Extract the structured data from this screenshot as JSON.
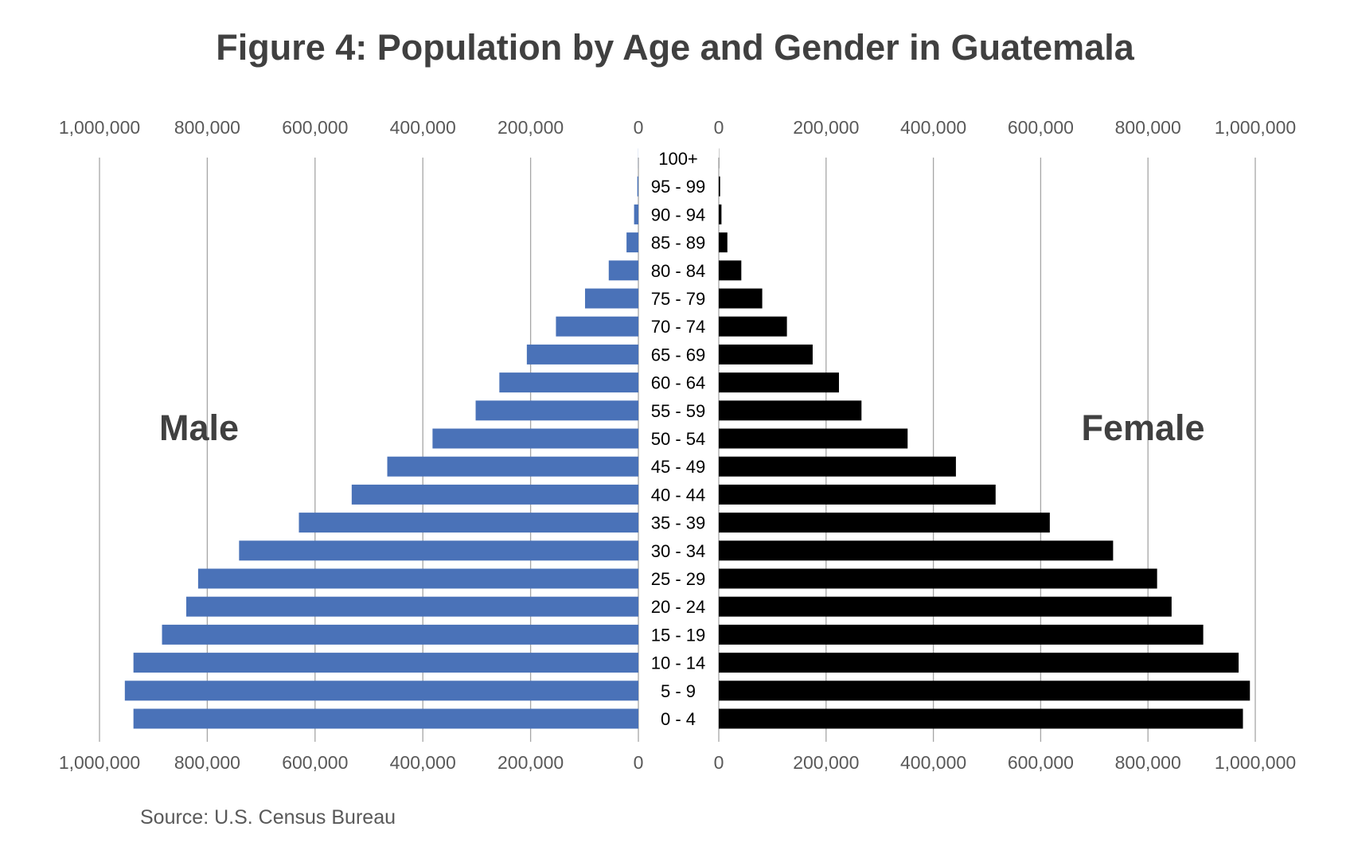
{
  "chart_data": {
    "type": "bar",
    "orientation": "horizontal",
    "title": "Figure 4: Population by Age and Gender in Guatemala",
    "source": "Source: U.S. Census Bureau",
    "categories": [
      "100+",
      "95 - 99",
      "90 - 94",
      "85 - 89",
      "80 - 84",
      "75 - 79",
      "70 - 74",
      "65 - 69",
      "60 - 64",
      "55 - 59",
      "50 - 54",
      "45 - 49",
      "40 - 44",
      "35 - 39",
      "30 - 34",
      "25 - 29",
      "20 - 24",
      "15 - 19",
      "10 - 14",
      "5 - 9",
      "0 - 4"
    ],
    "series": [
      {
        "name": "Male",
        "color": "#4a72b8",
        "values": [
          200,
          2000,
          8000,
          22000,
          55000,
          99000,
          153000,
          207000,
          258000,
          302000,
          382000,
          466000,
          532000,
          630000,
          741000,
          817000,
          839000,
          884000,
          937000,
          953000,
          937000
        ]
      },
      {
        "name": "Female",
        "color": "#000000",
        "values": [
          300,
          2500,
          5000,
          16000,
          42000,
          81000,
          127000,
          175000,
          224000,
          266000,
          352000,
          442000,
          516000,
          617000,
          735000,
          817000,
          844000,
          903000,
          969000,
          990000,
          977000
        ]
      }
    ],
    "xlim": [
      0,
      1000000
    ],
    "xticks": [
      "1,000,000",
      "800,000",
      "600,000",
      "400,000",
      "200,000",
      "0"
    ],
    "xticks_right": [
      "0",
      "200,000",
      "400,000",
      "600,000",
      "800,000",
      "1,000,000"
    ],
    "grid": true
  }
}
